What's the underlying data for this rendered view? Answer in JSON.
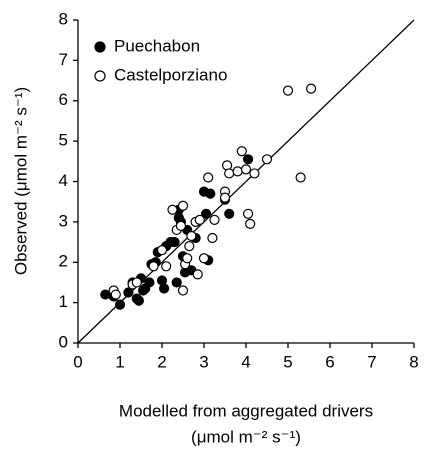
{
  "chart_data": {
    "type": "scatter",
    "xlabel": [
      "Modelled from aggregated drivers",
      "(μmol m⁻² s⁻¹)"
    ],
    "ylabel": "Observed (μmol m⁻² s⁻¹)",
    "xlim": [
      0,
      8
    ],
    "ylim": [
      0,
      8
    ],
    "xticks": [
      0,
      1,
      2,
      3,
      4,
      5,
      6,
      7,
      8
    ],
    "yticks": [
      0,
      1,
      2,
      3,
      4,
      5,
      6,
      7,
      8
    ],
    "grid": false,
    "legend": "upper left",
    "series": [
      {
        "name": "Puechabon",
        "color": "#000000",
        "filled": true,
        "x": [
          0.65,
          0.85,
          1.0,
          1.3,
          1.4,
          1.45,
          1.5,
          1.6,
          1.7,
          1.75,
          1.85,
          1.9,
          2.0,
          2.05,
          2.1,
          2.2,
          2.3,
          2.35,
          2.4,
          2.4,
          2.45,
          2.5,
          2.55,
          2.6,
          2.7,
          2.8,
          3.0,
          3.05,
          3.1,
          3.15,
          3.5,
          3.6,
          4.05,
          1.2,
          1.55,
          2.25
        ],
        "values": [
          1.2,
          1.15,
          0.95,
          1.5,
          1.1,
          1.05,
          1.6,
          1.35,
          1.5,
          1.95,
          2.0,
          2.25,
          1.55,
          1.35,
          2.4,
          2.5,
          2.5,
          1.5,
          3.1,
          3.3,
          3.0,
          2.15,
          1.75,
          2.8,
          1.8,
          2.6,
          3.75,
          3.2,
          2.05,
          3.7,
          3.55,
          3.2,
          4.55,
          1.25,
          1.3,
          2.5
        ]
      },
      {
        "name": "Castelporziano",
        "color": "#000000",
        "filled": false,
        "x": [
          0.85,
          0.9,
          1.3,
          1.4,
          2.0,
          2.1,
          2.25,
          2.35,
          2.45,
          2.5,
          2.5,
          2.55,
          2.6,
          2.65,
          2.7,
          2.8,
          2.85,
          2.9,
          3.0,
          3.1,
          3.2,
          3.25,
          3.5,
          3.55,
          3.6,
          3.8,
          3.9,
          4.0,
          4.05,
          4.1,
          4.2,
          4.5,
          5.0,
          5.3,
          5.55,
          1.8,
          3.5
        ],
        "values": [
          1.3,
          1.2,
          1.45,
          1.5,
          2.3,
          1.9,
          3.3,
          2.8,
          2.9,
          3.4,
          1.3,
          1.95,
          2.1,
          2.4,
          2.65,
          3.0,
          1.7,
          3.05,
          2.1,
          4.1,
          2.6,
          3.05,
          3.75,
          4.4,
          4.2,
          4.25,
          4.75,
          4.3,
          3.2,
          2.95,
          4.2,
          4.55,
          6.25,
          4.1,
          6.3,
          1.9,
          3.6
        ]
      }
    ]
  }
}
